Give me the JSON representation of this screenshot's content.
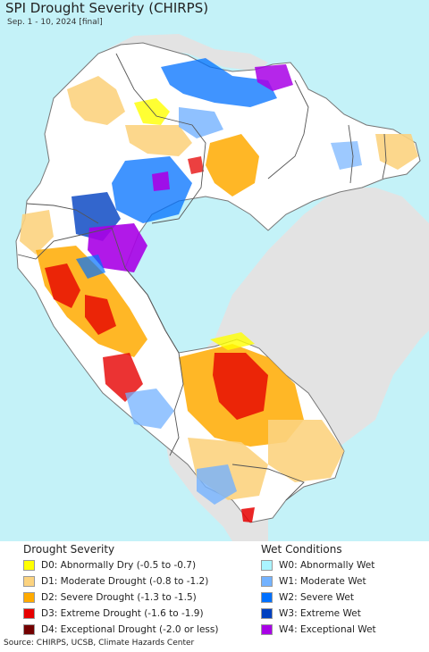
{
  "map": {
    "title": "SPI Drought Severity (CHIRPS)",
    "subtitle": "Sep. 1 - 10, 2024 [final]",
    "colors": {
      "ocean": "#c4f2f8",
      "outside_land": "#e3e3e3",
      "land": "#ffffff",
      "border": "#555555"
    }
  },
  "legend": {
    "drought_heading": "Drought Severity",
    "wet_heading": "Wet Conditions",
    "drought_items": [
      {
        "label": "D0: Abnormally Dry (-0.5 to -0.7)",
        "color": "#ffff00"
      },
      {
        "label": "D1: Moderate Drought (-0.8 to -1.2)",
        "color": "#fcd37f"
      },
      {
        "label": "D2: Severe Drought (-1.3 to -1.5)",
        "color": "#ffaa00"
      },
      {
        "label": "D3: Extreme Drought (-1.6 to -1.9)",
        "color": "#e60000"
      },
      {
        "label": "D4: Exceptional Drought (-2.0 or less)",
        "color": "#730000"
      }
    ],
    "wet_items": [
      {
        "label": "W0: Abnormally Wet",
        "color": "#aaf4ff"
      },
      {
        "label": "W1: Moderate Wet",
        "color": "#73b2ff"
      },
      {
        "label": "W2: Severe Wet",
        "color": "#0070ff"
      },
      {
        "label": "W3: Extreme Wet",
        "color": "#0040c0"
      },
      {
        "label": "W4: Exceptional Wet",
        "color": "#a800e6"
      }
    ]
  },
  "footer": {
    "source": "Source: CHIRPS, UCSB, Climate Hazards Center"
  }
}
